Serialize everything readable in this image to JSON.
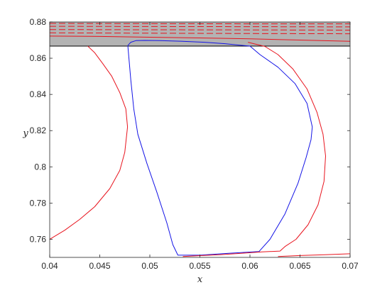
{
  "chart_data": {
    "type": "line",
    "title": "",
    "xlabel": "x",
    "ylabel": "y",
    "xlim": [
      0.04,
      0.07
    ],
    "ylim": [
      0.75,
      0.88
    ],
    "x_ticks": [
      0.04,
      0.045,
      0.05,
      0.055,
      0.06,
      0.065,
      0.07
    ],
    "x_tick_labels": [
      "0.04",
      "0.045",
      "0.05",
      "0.055",
      "0.06",
      "0.065",
      "0.07"
    ],
    "y_ticks": [
      0.76,
      0.78,
      0.8,
      0.82,
      0.84,
      0.86,
      0.88
    ],
    "y_tick_labels": [
      "0.76",
      "0.78",
      "0.8",
      "0.82",
      "0.84",
      "0.86",
      "0.88"
    ],
    "grid": false,
    "legend": "none",
    "colors": {
      "band": "#b3b3b3",
      "red": "#e8141e",
      "blue": "#1414e6",
      "axis": "#262626"
    },
    "shaded_band": {
      "y_from": 0.8667,
      "y_to": 0.88
    },
    "series": [
      {
        "color": "red",
        "style": "solid",
        "x": [
          0.04,
          0.0415,
          0.043,
          0.0445,
          0.046,
          0.047,
          0.0475,
          0.04777,
          0.0476,
          0.047,
          0.0462,
          0.0453,
          0.0445,
          0.0438
        ],
        "y": [
          0.76,
          0.765,
          0.771,
          0.778,
          0.788,
          0.798,
          0.808,
          0.822,
          0.832,
          0.841,
          0.85,
          0.857,
          0.863,
          0.8667
        ]
      },
      {
        "color": "blue",
        "style": "solid",
        "x": [
          0.0478,
          0.0481,
          0.0484,
          0.0488,
          0.0497,
          0.0507,
          0.0517,
          0.0523,
          0.0528,
          0.055,
          0.058,
          0.0609,
          0.062,
          0.0635,
          0.0648,
          0.0656,
          0.0661,
          0.06623,
          0.0657,
          0.0645,
          0.0628,
          0.061,
          0.06,
          0.059,
          0.0575,
          0.0555,
          0.053,
          0.051,
          0.0495,
          0.0486,
          0.0481,
          0.0478
        ],
        "y": [
          0.867,
          0.848,
          0.832,
          0.818,
          0.802,
          0.786,
          0.769,
          0.757,
          0.7512,
          0.7512,
          0.7523,
          0.7532,
          0.76,
          0.774,
          0.791,
          0.805,
          0.815,
          0.822,
          0.835,
          0.846,
          0.855,
          0.862,
          0.8667,
          0.8672,
          0.868,
          0.8688,
          0.8694,
          0.8697,
          0.8698,
          0.8697,
          0.8688,
          0.867
        ]
      },
      {
        "color": "red",
        "style": "solid",
        "x": [
          0.0598,
          0.0615,
          0.0628,
          0.0643,
          0.0657,
          0.0667,
          0.0673,
          0.06755,
          0.0674,
          0.0668,
          0.0658,
          0.0646,
          0.0635,
          0.063,
          0.0612,
          0.059,
          0.057,
          0.0552,
          0.0533
        ],
        "y": [
          0.8688,
          0.8665,
          0.862,
          0.854,
          0.843,
          0.83,
          0.818,
          0.806,
          0.792,
          0.779,
          0.768,
          0.76,
          0.756,
          0.7535,
          0.753,
          0.7522,
          0.7515,
          0.751,
          0.7505
        ]
      },
      {
        "color": "red",
        "style": "solid",
        "x": [
          0.0628,
          0.065,
          0.0675,
          0.07
        ],
        "y": [
          0.7505,
          0.751,
          0.7515,
          0.752
        ]
      },
      {
        "color": "red",
        "style": "solid",
        "x": [
          0.04,
          0.045,
          0.05,
          0.055,
          0.06,
          0.065,
          0.07
        ],
        "y": [
          0.8722,
          0.872,
          0.8716,
          0.8712,
          0.8707,
          0.87,
          0.8693
        ]
      },
      {
        "color": "red",
        "style": "dashed",
        "x": [
          0.04,
          0.05,
          0.06,
          0.07
        ],
        "y": [
          0.874,
          0.8738,
          0.8736,
          0.8735
        ]
      },
      {
        "color": "red",
        "style": "dashed",
        "x": [
          0.04,
          0.05,
          0.06,
          0.07
        ],
        "y": [
          0.8758,
          0.8757,
          0.8756,
          0.8755
        ]
      },
      {
        "color": "red",
        "style": "dashed",
        "x": [
          0.04,
          0.05,
          0.06,
          0.07
        ],
        "y": [
          0.8776,
          0.8775,
          0.8774,
          0.8773
        ]
      },
      {
        "color": "red",
        "style": "dashed",
        "x": [
          0.04,
          0.05,
          0.06,
          0.07
        ],
        "y": [
          0.8792,
          0.8791,
          0.879,
          0.879
        ]
      }
    ]
  }
}
